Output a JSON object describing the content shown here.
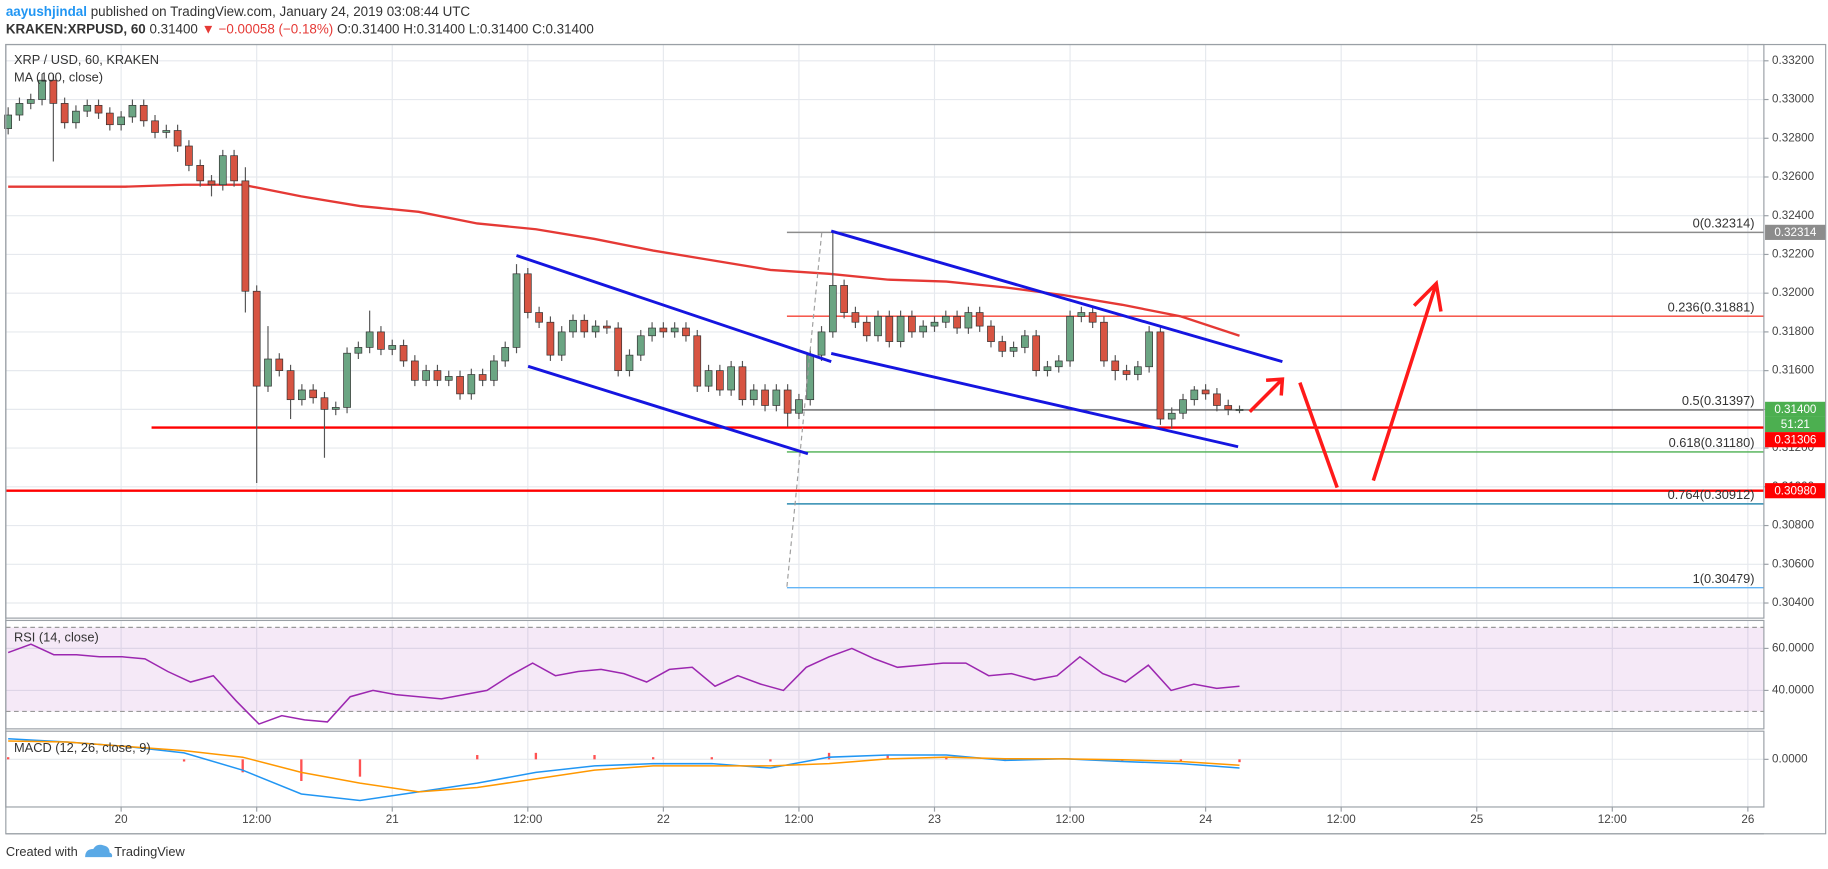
{
  "header": {
    "author": "aayushjindal",
    "published": "published on TradingView.com, January 24, 2019 03:08:44 UTC",
    "symbol": "KRAKEN:XRPUSD, 60",
    "last": "0.31400",
    "change": "▼ −0.00058 (−0.18%)",
    "open": "O:0.31400",
    "high": "H:0.31400",
    "low": "L:0.31400",
    "close": "C:0.31400"
  },
  "footer": {
    "text": "Created with",
    "brand": "TradingView"
  },
  "chart_data": [
    {
      "type": "candlestick",
      "title": "XRP / USD, 60, KRAKEN",
      "up_color": "#6ba583",
      "down_color": "#d75442",
      "grid": true,
      "ylim": [
        0.30322,
        0.33284
      ],
      "yticks": [
        {
          "value": 0.304,
          "label": "0.30400"
        },
        {
          "value": 0.306,
          "label": "0.30600"
        },
        {
          "value": 0.308,
          "label": "0.30800"
        },
        {
          "value": 0.31,
          "label": "0.31000"
        },
        {
          "value": 0.312,
          "label": "0.31200"
        },
        {
          "value": 0.314,
          "label": "0.31400"
        },
        {
          "value": 0.316,
          "label": "0.31600"
        },
        {
          "value": 0.318,
          "label": "0.31800"
        },
        {
          "value": 0.32,
          "label": "0.32000"
        },
        {
          "value": 0.322,
          "label": "0.32200"
        },
        {
          "value": 0.324,
          "label": "0.32400"
        },
        {
          "value": 0.326,
          "label": "0.32600"
        },
        {
          "value": 0.328,
          "label": "0.32800"
        },
        {
          "value": 0.33,
          "label": "0.33000"
        },
        {
          "value": 0.332,
          "label": "0.33200"
        }
      ],
      "xticks": [
        "20",
        "12:00",
        "21",
        "12:00",
        "22",
        "12:00",
        "23",
        "12:00",
        "24",
        "12:00",
        "25",
        "12:00",
        "26"
      ],
      "ohlc": [
        [
          0.3285,
          0.3296,
          0.3282,
          0.3292
        ],
        [
          0.3292,
          0.3301,
          0.3289,
          0.3298
        ],
        [
          0.3298,
          0.3303,
          0.3295,
          0.33
        ],
        [
          0.33,
          0.3313,
          0.3297,
          0.331
        ],
        [
          0.331,
          0.3313,
          0.3268,
          0.3298
        ],
        [
          0.3298,
          0.3301,
          0.3285,
          0.3288
        ],
        [
          0.3288,
          0.3297,
          0.3285,
          0.3294
        ],
        [
          0.3294,
          0.33,
          0.3291,
          0.3297
        ],
        [
          0.3297,
          0.33,
          0.329,
          0.3293
        ],
        [
          0.3293,
          0.3296,
          0.3284,
          0.3287
        ],
        [
          0.3287,
          0.3294,
          0.3284,
          0.3291
        ],
        [
          0.3291,
          0.33,
          0.3288,
          0.3297
        ],
        [
          0.3297,
          0.33,
          0.3286,
          0.3289
        ],
        [
          0.3289,
          0.3292,
          0.328,
          0.3283
        ],
        [
          0.3283,
          0.3287,
          0.328,
          0.3284
        ],
        [
          0.3284,
          0.3287,
          0.3273,
          0.3276
        ],
        [
          0.3276,
          0.3279,
          0.3263,
          0.3266
        ],
        [
          0.3266,
          0.3269,
          0.3255,
          0.3258
        ],
        [
          0.3258,
          0.3261,
          0.325,
          0.3256
        ],
        [
          0.3256,
          0.3274,
          0.3253,
          0.3271
        ],
        [
          0.3271,
          0.3274,
          0.3255,
          0.3258
        ],
        [
          0.3258,
          0.3265,
          0.319,
          0.3201
        ],
        [
          0.3201,
          0.3204,
          0.3102,
          0.3152
        ],
        [
          0.3152,
          0.3183,
          0.3149,
          0.3166
        ],
        [
          0.3166,
          0.3169,
          0.3157,
          0.316
        ],
        [
          0.316,
          0.3163,
          0.3135,
          0.3145
        ],
        [
          0.3145,
          0.3153,
          0.3142,
          0.315
        ],
        [
          0.315,
          0.3153,
          0.3143,
          0.3146
        ],
        [
          0.3146,
          0.3149,
          0.3115,
          0.314
        ],
        [
          0.314,
          0.3144,
          0.3137,
          0.3141
        ],
        [
          0.3141,
          0.3172,
          0.3138,
          0.3169
        ],
        [
          0.3169,
          0.3175,
          0.3166,
          0.3172
        ],
        [
          0.3172,
          0.3191,
          0.3169,
          0.318
        ],
        [
          0.318,
          0.3183,
          0.3168,
          0.3171
        ],
        [
          0.3171,
          0.3176,
          0.3168,
          0.3173
        ],
        [
          0.3173,
          0.3176,
          0.3162,
          0.3165
        ],
        [
          0.3165,
          0.3168,
          0.3152,
          0.3155
        ],
        [
          0.3155,
          0.3163,
          0.3152,
          0.316
        ],
        [
          0.316,
          0.3163,
          0.3152,
          0.3155
        ],
        [
          0.3155,
          0.316,
          0.3152,
          0.3157
        ],
        [
          0.3157,
          0.316,
          0.3145,
          0.3148
        ],
        [
          0.3148,
          0.3161,
          0.3145,
          0.3158
        ],
        [
          0.3158,
          0.3161,
          0.3152,
          0.3155
        ],
        [
          0.3155,
          0.3168,
          0.3152,
          0.3165
        ],
        [
          0.3165,
          0.3175,
          0.3162,
          0.3172
        ],
        [
          0.3172,
          0.3215,
          0.3169,
          0.321
        ],
        [
          0.321,
          0.3213,
          0.3187,
          0.319
        ],
        [
          0.319,
          0.3193,
          0.3182,
          0.3185
        ],
        [
          0.3185,
          0.3188,
          0.3165,
          0.3168
        ],
        [
          0.3168,
          0.3183,
          0.3165,
          0.318
        ],
        [
          0.318,
          0.3189,
          0.3177,
          0.3186
        ],
        [
          0.3186,
          0.3189,
          0.3177,
          0.318
        ],
        [
          0.318,
          0.3186,
          0.3177,
          0.3183
        ],
        [
          0.3183,
          0.3186,
          0.3179,
          0.3182
        ],
        [
          0.3182,
          0.3185,
          0.3157,
          0.316
        ],
        [
          0.316,
          0.3171,
          0.3157,
          0.3168
        ],
        [
          0.3168,
          0.3181,
          0.3165,
          0.3178
        ],
        [
          0.3178,
          0.3185,
          0.3175,
          0.3182
        ],
        [
          0.3182,
          0.3185,
          0.3177,
          0.318
        ],
        [
          0.318,
          0.3185,
          0.3177,
          0.3182
        ],
        [
          0.3182,
          0.3185,
          0.3175,
          0.3178
        ],
        [
          0.3178,
          0.3181,
          0.3149,
          0.3152
        ],
        [
          0.3152,
          0.3163,
          0.3149,
          0.316
        ],
        [
          0.316,
          0.3163,
          0.3147,
          0.315
        ],
        [
          0.315,
          0.3165,
          0.3147,
          0.3162
        ],
        [
          0.3162,
          0.3165,
          0.3142,
          0.3145
        ],
        [
          0.3145,
          0.3153,
          0.3142,
          0.315
        ],
        [
          0.315,
          0.3153,
          0.3139,
          0.3142
        ],
        [
          0.3142,
          0.3153,
          0.3139,
          0.315
        ],
        [
          0.315,
          0.3153,
          0.3131,
          0.3138
        ],
        [
          0.3138,
          0.3148,
          0.3135,
          0.3145
        ],
        [
          0.3145,
          0.3171,
          0.3142,
          0.3168
        ],
        [
          0.3168,
          0.3183,
          0.3165,
          0.318
        ],
        [
          0.318,
          0.32314,
          0.3177,
          0.3204
        ],
        [
          0.3204,
          0.3207,
          0.3187,
          0.319
        ],
        [
          0.319,
          0.3193,
          0.3182,
          0.3185
        ],
        [
          0.3185,
          0.3188,
          0.3175,
          0.3178
        ],
        [
          0.3178,
          0.3191,
          0.3175,
          0.3188
        ],
        [
          0.3188,
          0.3191,
          0.3172,
          0.3175
        ],
        [
          0.3175,
          0.3191,
          0.3172,
          0.3188
        ],
        [
          0.3188,
          0.3191,
          0.3177,
          0.318
        ],
        [
          0.318,
          0.3186,
          0.3177,
          0.3183
        ],
        [
          0.3183,
          0.3188,
          0.318,
          0.3185
        ],
        [
          0.3185,
          0.3191,
          0.3182,
          0.3188
        ],
        [
          0.3188,
          0.3191,
          0.3179,
          0.3182
        ],
        [
          0.3182,
          0.3193,
          0.3179,
          0.319
        ],
        [
          0.319,
          0.3193,
          0.318,
          0.3183
        ],
        [
          0.3183,
          0.3186,
          0.3172,
          0.3175
        ],
        [
          0.3175,
          0.3178,
          0.3167,
          0.317
        ],
        [
          0.317,
          0.3175,
          0.3167,
          0.3172
        ],
        [
          0.3172,
          0.3181,
          0.3169,
          0.3178
        ],
        [
          0.3178,
          0.3181,
          0.3157,
          0.316
        ],
        [
          0.316,
          0.3165,
          0.3157,
          0.3162
        ],
        [
          0.3162,
          0.3168,
          0.3159,
          0.3165
        ],
        [
          0.3165,
          0.3191,
          0.3162,
          0.3188
        ],
        [
          0.3188,
          0.3193,
          0.3185,
          0.319
        ],
        [
          0.319,
          0.3193,
          0.3182,
          0.3185
        ],
        [
          0.3185,
          0.3188,
          0.3162,
          0.3165
        ],
        [
          0.3165,
          0.3168,
          0.3155,
          0.316
        ],
        [
          0.316,
          0.3163,
          0.3155,
          0.3158
        ],
        [
          0.3158,
          0.3165,
          0.3155,
          0.3162
        ],
        [
          0.3162,
          0.3183,
          0.3159,
          0.318
        ],
        [
          0.318,
          0.3183,
          0.3132,
          0.3135
        ],
        [
          0.3135,
          0.3141,
          0.313,
          0.3138
        ],
        [
          0.3138,
          0.3148,
          0.3135,
          0.3145
        ],
        [
          0.3145,
          0.3152,
          0.3142,
          0.315
        ],
        [
          0.315,
          0.3153,
          0.3145,
          0.3148
        ],
        [
          0.3148,
          0.3151,
          0.3139,
          0.3142
        ],
        [
          0.3142,
          0.3145,
          0.3137,
          0.314
        ],
        [
          0.314,
          0.3142,
          0.3138,
          0.314
        ]
      ],
      "ma": {
        "name": "MA (100, close)",
        "color": "#e53935",
        "values": [
          0.3255,
          0.3255,
          0.3255,
          0.3256,
          0.3256,
          0.325,
          0.3245,
          0.3242,
          0.3236,
          0.3233,
          0.3228,
          0.3222,
          0.3217,
          0.3212,
          0.321,
          0.3207,
          0.3206,
          0.3203,
          0.3199,
          0.3194,
          0.3188,
          0.3178
        ]
      },
      "fib": [
        {
          "value": 0.32314,
          "label": "0(0.32314)",
          "color": "#8c8c8c"
        },
        {
          "value": 0.31881,
          "label": "0.236(0.31881)",
          "color": "#f44336"
        },
        {
          "value": 0.31397,
          "label": "0.5(0.31397)",
          "color": "#666666"
        },
        {
          "value": 0.3118,
          "label": "0.618(0.31180)",
          "color": "#4caf50"
        },
        {
          "value": 0.30912,
          "label": "0.764(0.30912)",
          "color": "#2e8bb0"
        },
        {
          "value": 0.30479,
          "label": "1(0.30479)",
          "color": "#64b5f6"
        }
      ],
      "levels": [
        {
          "value": 0.31306,
          "color": "#ff0000"
        },
        {
          "value": 0.3098,
          "color": "#ff0000"
        }
      ],
      "price_labels": [
        {
          "value": 0.32314,
          "label": "0.32314",
          "color": "#8c8c8c"
        },
        {
          "value": 0.314,
          "label": "0.31400",
          "color": "#4caf50"
        },
        {
          "value": 0.31306,
          "label": "0.31306",
          "color": "#ff0000"
        },
        {
          "value": 0.3098,
          "label": "0.30980",
          "color": "#ff0000"
        }
      ],
      "countdown": "51:21"
    },
    {
      "type": "line",
      "title": "RSI (14, close)",
      "ylim": [
        21.7,
        73.3
      ],
      "yticks": [
        {
          "value": 40,
          "label": "40.0000"
        },
        {
          "value": 60,
          "label": "60.0000"
        }
      ],
      "band": [
        30,
        70
      ],
      "band_color": "#9c27b0",
      "series": [
        {
          "color": "#9c27b0",
          "values": [
            58,
            62,
            57,
            57,
            56,
            56,
            55,
            49,
            44,
            47,
            35,
            24,
            28,
            26,
            25,
            37,
            40,
            38,
            37,
            36,
            38,
            40,
            47,
            53,
            47,
            49,
            50,
            48,
            44,
            50,
            51,
            42,
            47,
            43,
            40,
            51,
            56,
            60,
            55,
            51,
            52,
            53,
            53,
            47,
            48,
            45,
            47,
            56,
            48,
            44,
            52,
            40,
            43,
            41,
            42
          ]
        }
      ]
    },
    {
      "type": "line",
      "title": "MACD (12, 26, close, 9)",
      "ylim": [
        -0.0022,
        0.0013
      ],
      "yticks": [
        {
          "value": 0,
          "label": "0.0000"
        }
      ],
      "histogram": {
        "color": "#ff5252",
        "values": [
          0.0001,
          0,
          0,
          -0.0001,
          -0.0006,
          -0.001,
          -0.0008,
          0,
          0.0002,
          0.0003,
          0.0002,
          0.0001,
          0.0001,
          -0.0001,
          0.0003,
          0.00018,
          0.0001,
          -8e-05,
          1e-05,
          -8e-05,
          -0.0001,
          -0.00013
        ]
      },
      "series": [
        {
          "color": "#2196f3",
          "values": [
            0.00095,
            0.0008,
            0.0006,
            0.0003,
            -0.0005,
            -0.0016,
            -0.0019,
            -0.0015,
            -0.0011,
            -0.0006,
            -0.0003,
            -0.0002,
            -0.0002,
            -0.0004,
            0.0001,
            0.0002,
            0.0002,
            -5e-05,
            3e-05,
            -0.0001,
            -0.0002,
            -0.0004
          ]
        },
        {
          "color": "#ff9800",
          "values": [
            0.00085,
            0.0008,
            0.0006,
            0.0004,
            0.0001,
            -0.0006,
            -0.0011,
            -0.0015,
            -0.0013,
            -0.0009,
            -0.0005,
            -0.0003,
            -0.0003,
            -0.0003,
            -0.0002,
            2e-05,
            0.0001,
            3e-05,
            2e-05,
            -2e-05,
            -0.0001,
            -0.00027
          ]
        }
      ]
    }
  ]
}
